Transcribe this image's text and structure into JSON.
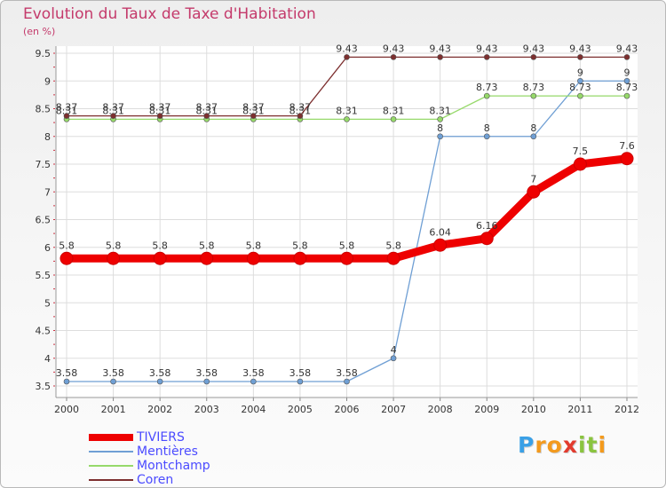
{
  "chart_data": {
    "type": "line",
    "title": "Evolution du Taux de Taxe d'Habitation",
    "ylabel": "(en %)",
    "xlabel": "",
    "x": [
      "2000",
      "2001",
      "2002",
      "2003",
      "2004",
      "2005",
      "2006",
      "2007",
      "2008",
      "2009",
      "2010",
      "2011",
      "2012"
    ],
    "ylim": [
      3.5,
      9.5
    ],
    "yticks": [
      "3.5",
      "4",
      "4.5",
      "5",
      "5.5",
      "6",
      "6.5",
      "7",
      "7.5",
      "8",
      "8.5",
      "9",
      "9.5"
    ],
    "grid": true,
    "series": [
      {
        "name": "TIVIERS",
        "color": "#ee0000",
        "values": [
          5.8,
          5.8,
          5.8,
          5.8,
          5.8,
          5.8,
          5.8,
          5.8,
          6.04,
          6.16,
          7,
          7.5,
          7.6
        ],
        "labels": [
          "5.8",
          "5.8",
          "5.8",
          "5.8",
          "5.8",
          "5.8",
          "5.8",
          "5.8",
          "6.04",
          "6.16",
          "7",
          "7.5",
          "7.6"
        ]
      },
      {
        "name": "Mentières",
        "color": "#6f9fd4",
        "values": [
          3.58,
          3.58,
          3.58,
          3.58,
          3.58,
          3.58,
          3.58,
          4,
          8,
          8,
          8,
          9,
          9
        ],
        "labels": [
          "3.58",
          "3.58",
          "3.58",
          "3.58",
          "3.58",
          "3.58",
          "3.58",
          "4",
          "8",
          "8",
          "8",
          "9",
          "9"
        ]
      },
      {
        "name": "Montchamp",
        "color": "#96d96a",
        "values": [
          8.31,
          8.31,
          8.31,
          8.31,
          8.31,
          8.31,
          8.31,
          8.31,
          8.31,
          8.73,
          8.73,
          8.73,
          8.73
        ],
        "labels": [
          "8.31",
          "8.31",
          "8.31",
          "8.31",
          "8.31",
          "8.31",
          "8.31",
          "8.31",
          "8.31",
          "8.73",
          "8.73",
          "8.73",
          "8.73"
        ]
      },
      {
        "name": "Coren",
        "color": "#7d2f2f",
        "values": [
          8.37,
          8.37,
          8.37,
          8.37,
          8.37,
          8.37,
          9.43,
          9.43,
          9.43,
          9.43,
          9.43,
          9.43,
          9.43
        ],
        "labels": [
          "8.37",
          "8.37",
          "8.37",
          "8.37",
          "8.37",
          "8.37",
          "9.43",
          "9.43",
          "9.43",
          "9.43",
          "9.43",
          "9.43",
          "9.43"
        ]
      }
    ]
  },
  "logo": {
    "letters": [
      "P",
      "r",
      "o",
      "x",
      "i",
      "t",
      "i"
    ],
    "colors": [
      "#3aa0e6",
      "#f39a1d",
      "#f39a1d",
      "#e23b2e",
      "#8ac43f",
      "#8ac43f",
      "#f39a1d"
    ]
  }
}
